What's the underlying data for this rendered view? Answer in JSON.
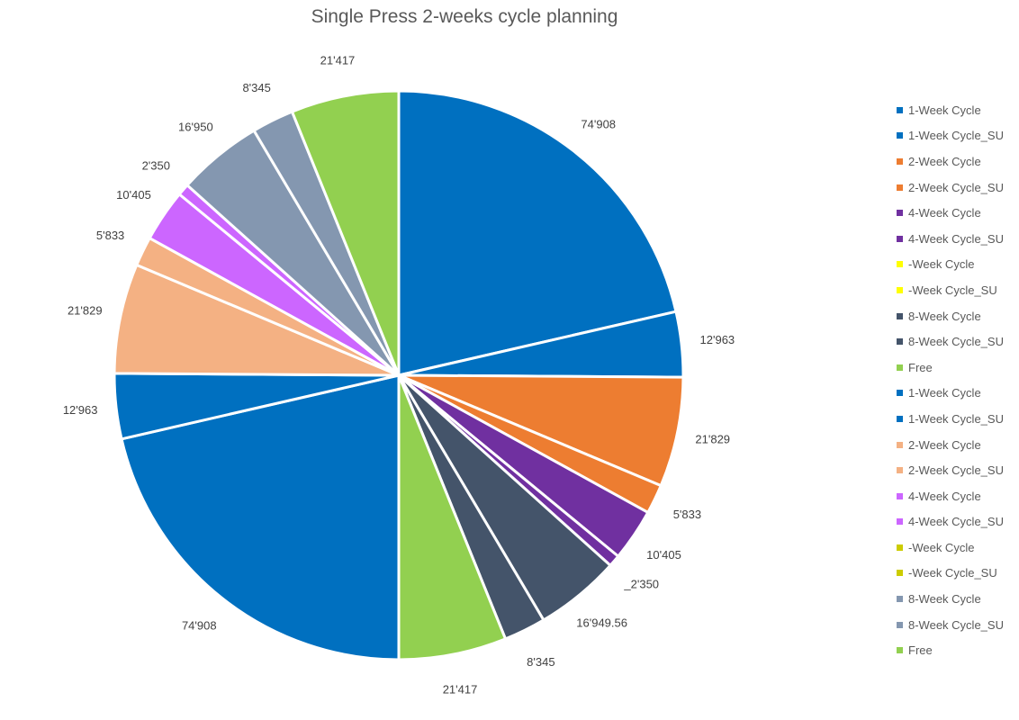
{
  "chart_data": {
    "type": "pie",
    "title": "Single Press 2-weeks cycle planning",
    "legend_position": "right",
    "slices": [
      {
        "label": "1-Week Cycle",
        "value": 74908,
        "data_label": "74'908",
        "color": "#0070C0"
      },
      {
        "label": "1-Week Cycle_SU",
        "value": 12963,
        "data_label": "12'963",
        "color": "#0070C0"
      },
      {
        "label": "2-Week Cycle",
        "value": 21829,
        "data_label": "21'829",
        "color": "#ED7D31"
      },
      {
        "label": "2-Week Cycle_SU",
        "value": 5833,
        "data_label": "5'833",
        "color": "#ED7D31"
      },
      {
        "label": "4-Week Cycle",
        "value": 10405,
        "data_label": "10'405",
        "color": "#7030A0"
      },
      {
        "label": "4-Week Cycle_SU",
        "value": 2350,
        "data_label": "_2'350",
        "color": "#7030A0"
      },
      {
        "label": "-Week Cycle",
        "value": 0,
        "data_label": "",
        "color": "#FFFF00"
      },
      {
        "label": "-Week Cycle_SU",
        "value": 0,
        "data_label": "",
        "color": "#FFFF00"
      },
      {
        "label": "8-Week Cycle",
        "value": 16949.56,
        "data_label": "16'949.56",
        "color": "#44546A"
      },
      {
        "label": "8-Week Cycle_SU",
        "value": 8345,
        "data_label": "8'345",
        "color": "#44546A"
      },
      {
        "label": "Free",
        "value": 21417,
        "data_label": "21'417",
        "color": "#92D050"
      },
      {
        "label": "1-Week Cycle",
        "value": 74908,
        "data_label": "74'908",
        "color": "#0070C0"
      },
      {
        "label": "1-Week Cycle_SU",
        "value": 12963,
        "data_label": "12'963",
        "color": "#0070C0"
      },
      {
        "label": "2-Week Cycle",
        "value": 21829,
        "data_label": "21'829",
        "color": "#F4B183"
      },
      {
        "label": "2-Week Cycle_SU",
        "value": 5833,
        "data_label": "5'833",
        "color": "#F4B183"
      },
      {
        "label": "4-Week Cycle",
        "value": 10405,
        "data_label": "10'405",
        "color": "#CC66FF"
      },
      {
        "label": "4-Week Cycle_SU",
        "value": 2350,
        "data_label": "2'350",
        "color": "#CC66FF"
      },
      {
        "label": "-Week Cycle",
        "value": 0,
        "data_label": "",
        "color": "#CCCC00"
      },
      {
        "label": "-Week Cycle_SU",
        "value": 0,
        "data_label": "",
        "color": "#CCCC00"
      },
      {
        "label": "8-Week Cycle",
        "value": 16950,
        "data_label": "16'950",
        "color": "#8497B0"
      },
      {
        "label": "8-Week Cycle_SU",
        "value": 8345,
        "data_label": "8'345",
        "color": "#8497B0"
      },
      {
        "label": "Free",
        "value": 21417,
        "data_label": "21'417",
        "color": "#92D050"
      }
    ]
  }
}
